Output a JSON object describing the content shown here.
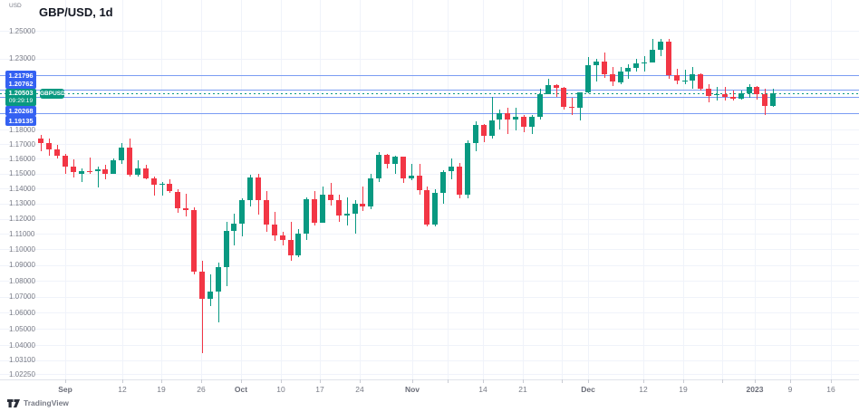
{
  "header": {
    "unit": "USD",
    "title": "GBP/USD, 1d"
  },
  "footer": {
    "brand": "TradingView"
  },
  "colors": {
    "up": "#089981",
    "down": "#f23645",
    "level_line": "#7a9cf3",
    "level_label_bg": "#3461f2",
    "current_color": "#089981",
    "grid": "#f0f3fa",
    "axis_text": "#787b86",
    "title_text": "#131722",
    "axis_line": "#e0e3eb",
    "brand_icon": "#2a2e39"
  },
  "levels": {
    "lines": [
      {
        "value": "1.21796",
        "price": 1.21796
      },
      {
        "value": "1.20762",
        "price": 1.20762
      },
      {
        "value": "1.20268",
        "price": 1.20268
      },
      {
        "value": "1.19135",
        "price": 1.19135
      }
    ],
    "current": {
      "value": "1.20503",
      "price": 1.20503,
      "countdown": "09:29:19",
      "symbol": "GBPUSD"
    }
  },
  "chart_data": {
    "type": "candlestick",
    "title": "GBP/USD, 1d",
    "symbol": "GBP/USD",
    "timeframe": "1d",
    "yscale": "log",
    "ylim": [
      1.01938,
      1.27297
    ],
    "grid": true,
    "y_ticks": [
      {
        "label": "1.25000",
        "price": 1.25
      },
      {
        "label": "1.23000",
        "price": 1.23
      },
      {
        "label": "1.18000",
        "price": 1.18
      },
      {
        "label": "1.17000",
        "price": 1.17
      },
      {
        "label": "1.16000",
        "price": 1.16
      },
      {
        "label": "1.15000",
        "price": 1.15
      },
      {
        "label": "1.14000",
        "price": 1.14
      },
      {
        "label": "1.13000",
        "price": 1.13
      },
      {
        "label": "1.12000",
        "price": 1.12
      },
      {
        "label": "1.11000",
        "price": 1.11
      },
      {
        "label": "1.10000",
        "price": 1.1
      },
      {
        "label": "1.09000",
        "price": 1.09
      },
      {
        "label": "1.08000",
        "price": 1.08
      },
      {
        "label": "1.07000",
        "price": 1.07
      },
      {
        "label": "1.06000",
        "price": 1.06
      },
      {
        "label": "1.05000",
        "price": 1.05
      },
      {
        "label": "1.04000",
        "price": 1.04
      },
      {
        "label": "1.03100",
        "price": 1.031
      },
      {
        "label": "1.02250",
        "price": 1.0225
      }
    ],
    "x_ticks": [
      {
        "label": "Sep",
        "x": 72,
        "major": true
      },
      {
        "label": "12",
        "x": 135
      },
      {
        "label": "19",
        "x": 178
      },
      {
        "label": "26",
        "x": 222
      },
      {
        "label": "Oct",
        "x": 266,
        "major": true
      },
      {
        "label": "10",
        "x": 310
      },
      {
        "label": "17",
        "x": 353
      },
      {
        "label": "24",
        "x": 397
      },
      {
        "label": "Nov",
        "x": 455,
        "major": true
      },
      {
        "label": "14",
        "x": 533
      },
      {
        "label": "21",
        "x": 577
      },
      {
        "label": "Dec",
        "x": 649,
        "major": true
      },
      {
        "label": "12",
        "x": 710
      },
      {
        "label": "19",
        "x": 754
      },
      {
        "label": "2023",
        "x": 833,
        "major": true
      },
      {
        "label": "9",
        "x": 872
      },
      {
        "label": "16",
        "x": 917
      }
    ],
    "ohlc": [
      [
        1.1738,
        1.176,
        1.1649,
        1.1706
      ],
      [
        1.1706,
        1.1737,
        1.1622,
        1.1662
      ],
      [
        1.1662,
        1.1693,
        1.16,
        1.1622
      ],
      [
        1.1622,
        1.1633,
        1.1499,
        1.1545
      ],
      [
        1.1545,
        1.1598,
        1.1473,
        1.1511
      ],
      [
        1.1498,
        1.1533,
        1.1444,
        1.1517
      ],
      [
        1.1517,
        1.1609,
        1.1497,
        1.1515
      ],
      [
        1.1515,
        1.1547,
        1.1404,
        1.1527
      ],
      [
        1.1527,
        1.1559,
        1.1461,
        1.15
      ],
      [
        1.15,
        1.16,
        1.1498,
        1.1588
      ],
      [
        1.1588,
        1.1709,
        1.1567,
        1.1679
      ],
      [
        1.1679,
        1.1738,
        1.148,
        1.1491
      ],
      [
        1.1491,
        1.159,
        1.148,
        1.1536
      ],
      [
        1.1536,
        1.156,
        1.1459,
        1.1468
      ],
      [
        1.1468,
        1.1479,
        1.1351,
        1.1424
      ],
      [
        1.1424,
        1.1442,
        1.135,
        1.143
      ],
      [
        1.143,
        1.146,
        1.1369,
        1.1379
      ],
      [
        1.1379,
        1.1394,
        1.1237,
        1.1269
      ],
      [
        1.1269,
        1.1365,
        1.1213,
        1.1255
      ],
      [
        1.1255,
        1.1273,
        1.084,
        1.0856
      ],
      [
        1.0856,
        1.093,
        1.035,
        1.0685
      ],
      [
        1.0685,
        1.0838,
        1.064,
        1.0733
      ],
      [
        1.0733,
        1.0916,
        1.0539,
        1.0889
      ],
      [
        1.0889,
        1.118,
        1.0764,
        1.1118
      ],
      [
        1.1118,
        1.1235,
        1.1025,
        1.1167
      ],
      [
        1.1167,
        1.1334,
        1.1086,
        1.1323
      ],
      [
        1.1323,
        1.149,
        1.1281,
        1.1473
      ],
      [
        1.1473,
        1.1495,
        1.1227,
        1.1325
      ],
      [
        1.1325,
        1.1382,
        1.1113,
        1.1162
      ],
      [
        1.1162,
        1.1245,
        1.1055,
        1.1092
      ],
      [
        1.1092,
        1.1115,
        1.1027,
        1.106
      ],
      [
        1.106,
        1.118,
        1.0925,
        1.0964
      ],
      [
        1.0964,
        1.113,
        1.0949,
        1.1101
      ],
      [
        1.1101,
        1.1339,
        1.106,
        1.1326
      ],
      [
        1.1326,
        1.138,
        1.1153,
        1.1174
      ],
      [
        1.1174,
        1.141,
        1.1172,
        1.1359
      ],
      [
        1.1359,
        1.1439,
        1.1288,
        1.1321
      ],
      [
        1.1321,
        1.1357,
        1.118,
        1.1221
      ],
      [
        1.1221,
        1.1338,
        1.1156,
        1.1234
      ],
      [
        1.1234,
        1.132,
        1.11,
        1.13
      ],
      [
        1.13,
        1.141,
        1.1252,
        1.1281
      ],
      [
        1.1281,
        1.15,
        1.126,
        1.147
      ],
      [
        1.147,
        1.1646,
        1.1442,
        1.1626
      ],
      [
        1.1626,
        1.163,
        1.1535,
        1.1565
      ],
      [
        1.1565,
        1.162,
        1.1495,
        1.1615
      ],
      [
        1.1615,
        1.1617,
        1.144,
        1.1468
      ],
      [
        1.1468,
        1.1565,
        1.1455,
        1.1484
      ],
      [
        1.1484,
        1.1564,
        1.1355,
        1.139
      ],
      [
        1.139,
        1.141,
        1.1147,
        1.116
      ],
      [
        1.116,
        1.1395,
        1.115,
        1.1373
      ],
      [
        1.1373,
        1.1525,
        1.13,
        1.1513
      ],
      [
        1.1513,
        1.16,
        1.146,
        1.1544
      ],
      [
        1.1544,
        1.1572,
        1.1333,
        1.1358
      ],
      [
        1.1358,
        1.1728,
        1.1332,
        1.1705
      ],
      [
        1.1705,
        1.1855,
        1.165,
        1.1831
      ],
      [
        1.1831,
        1.184,
        1.171,
        1.1759
      ],
      [
        1.1759,
        1.2028,
        1.174,
        1.1866
      ],
      [
        1.1866,
        1.1942,
        1.18,
        1.1911
      ],
      [
        1.1911,
        1.195,
        1.1766,
        1.1867
      ],
      [
        1.1867,
        1.195,
        1.1795,
        1.1889
      ],
      [
        1.1889,
        1.19,
        1.1778,
        1.182
      ],
      [
        1.182,
        1.19,
        1.1768,
        1.1888
      ],
      [
        1.1888,
        1.2085,
        1.187,
        1.2049
      ],
      [
        1.2049,
        1.2153,
        1.2043,
        1.2112
      ],
      [
        1.2112,
        1.212,
        1.2025,
        1.2093
      ],
      [
        1.2093,
        1.2098,
        1.1942,
        1.1958
      ],
      [
        1.1958,
        1.2022,
        1.19,
        1.1953
      ],
      [
        1.1953,
        1.206,
        1.1865,
        1.2058
      ],
      [
        1.2058,
        1.231,
        1.205,
        1.2252
      ],
      [
        1.2252,
        1.23,
        1.2135,
        1.228
      ],
      [
        1.228,
        1.2345,
        1.2162,
        1.219
      ],
      [
        1.219,
        1.224,
        1.2107,
        1.2133
      ],
      [
        1.2133,
        1.2243,
        1.2118,
        1.2205
      ],
      [
        1.2205,
        1.2262,
        1.2156,
        1.2234
      ],
      [
        1.2234,
        1.23,
        1.2207,
        1.2264
      ],
      [
        1.2264,
        1.232,
        1.221,
        1.2274
      ],
      [
        1.2274,
        1.2443,
        1.227,
        1.2366
      ],
      [
        1.2366,
        1.2446,
        1.232,
        1.2424
      ],
      [
        1.2424,
        1.2445,
        1.2155,
        1.218
      ],
      [
        1.218,
        1.2225,
        1.2119,
        1.2141
      ],
      [
        1.2141,
        1.2224,
        1.2121,
        1.2146
      ],
      [
        1.2146,
        1.2242,
        1.2085,
        1.2187
      ],
      [
        1.2187,
        1.2195,
        1.2075,
        1.2086
      ],
      [
        1.2086,
        1.212,
        1.1992,
        1.2037
      ],
      [
        1.2037,
        1.21,
        1.2005,
        1.2046
      ],
      [
        1.2046,
        1.2096,
        1.2003,
        1.2026
      ],
      [
        1.2026,
        1.2075,
        1.2,
        1.2017
      ],
      [
        1.2017,
        1.207,
        1.2009,
        1.2053
      ],
      [
        1.2053,
        1.2118,
        1.2019,
        1.2098
      ],
      [
        1.2098,
        1.2107,
        1.2007,
        1.2048
      ],
      [
        1.2048,
        1.2087,
        1.19,
        1.1966
      ],
      [
        1.1966,
        1.2087,
        1.1957,
        1.20503
      ]
    ]
  }
}
